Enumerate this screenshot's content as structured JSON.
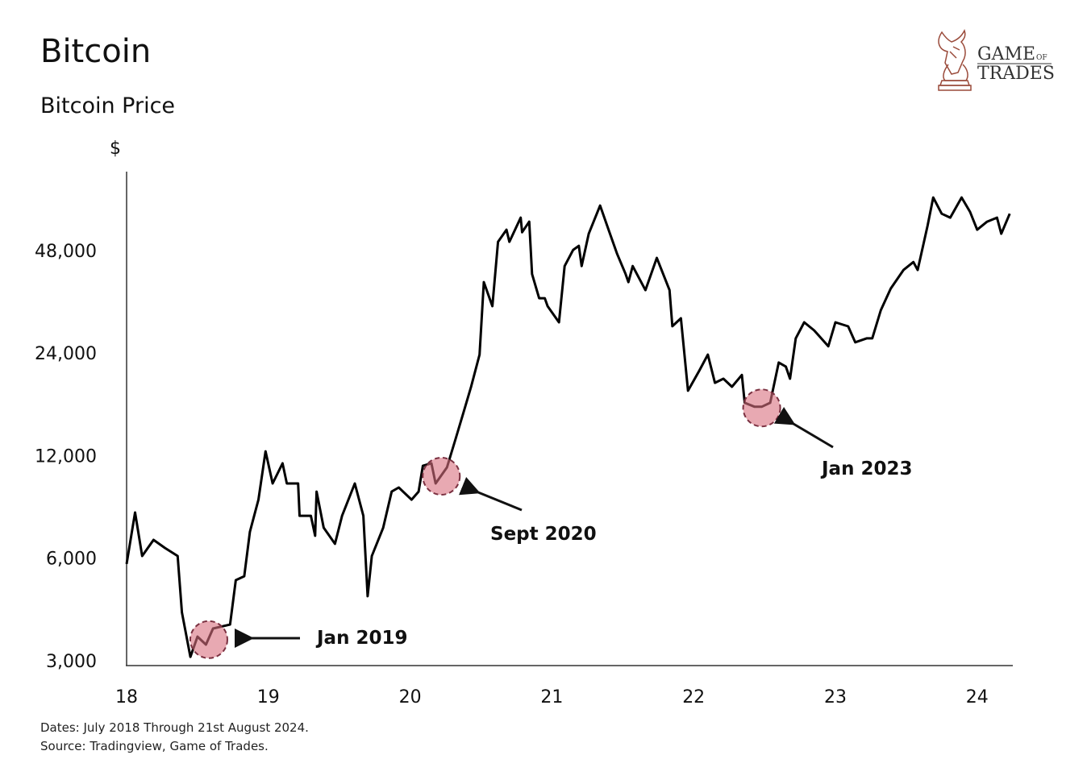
{
  "header": {
    "title": "Bitcoin",
    "subtitle": "Bitcoin Price"
  },
  "logo": {
    "line1": "GAME",
    "of": "OF",
    "line2": "TRADES",
    "color": "#8a3a2a"
  },
  "footer": {
    "dates": "Dates: July 2018 Through 21st August 2024.",
    "source": "Source: Tradingview, Game of Trades."
  },
  "chart_data": {
    "type": "line",
    "title": "Bitcoin",
    "subtitle": "Bitcoin Price",
    "ylabel": "$",
    "xlabel": "",
    "yscale": "log2",
    "ylim": [
      3000,
      80000
    ],
    "xlim": [
      18,
      24.25
    ],
    "grid": false,
    "line_color": "#000000",
    "x_ticks": [
      18,
      19,
      20,
      21,
      22,
      23,
      24
    ],
    "x_tick_labels": [
      "18",
      "19",
      "20",
      "21",
      "22",
      "23",
      "24"
    ],
    "y_ticks": [
      3000,
      6000,
      12000,
      24000,
      48000
    ],
    "y_tick_labels": [
      "3,000",
      "6,000",
      "12,000",
      "24,000",
      "48,000"
    ],
    "series": [
      {
        "x": [
          18.0,
          18.06,
          18.11,
          18.19,
          18.27,
          18.36,
          18.39,
          18.45,
          18.5,
          18.56,
          18.61,
          18.73,
          18.77,
          18.83,
          18.87,
          18.93,
          18.98,
          19.03,
          19.1,
          19.13,
          19.21,
          19.22,
          19.3,
          19.33,
          19.34,
          19.39,
          19.47,
          19.52,
          19.61,
          19.67,
          19.7,
          19.73,
          19.81,
          19.87,
          19.92,
          20.01,
          20.06,
          20.09,
          20.15,
          20.18,
          20.26,
          20.32,
          20.38,
          20.43,
          20.49,
          20.52,
          20.58,
          20.62,
          20.68,
          20.7,
          20.78,
          20.79,
          20.84,
          20.86,
          20.91,
          20.95,
          20.97,
          21.05,
          21.09,
          21.15,
          21.19,
          21.21,
          21.26,
          21.34,
          21.4,
          21.46,
          21.52,
          21.54,
          21.57,
          21.66,
          21.74,
          21.83,
          21.85,
          21.91,
          21.96,
          22.04,
          22.1,
          22.15,
          22.21,
          22.27,
          22.34,
          22.36,
          22.43,
          22.48,
          22.54,
          22.6,
          22.65,
          22.68,
          22.72,
          22.78,
          22.85,
          22.95,
          23.0,
          23.09,
          23.14,
          23.22,
          23.26,
          23.32,
          23.39,
          23.48,
          23.55,
          23.58,
          23.65,
          23.69,
          23.75,
          23.81,
          23.89,
          23.95,
          24.0,
          24.07,
          24.14,
          24.17,
          24.23
        ],
        "y": [
          5770,
          8170,
          6090,
          6790,
          6430,
          6090,
          4160,
          3080,
          3530,
          3345,
          3730,
          3830,
          5170,
          5310,
          7170,
          8910,
          12350,
          9940,
          11390,
          9940,
          9940,
          7990,
          7990,
          6980,
          9410,
          7370,
          6610,
          7990,
          9940,
          7990,
          4640,
          6090,
          7370,
          9410,
          9670,
          8910,
          9410,
          11200,
          11390,
          9940,
          11080,
          13410,
          16240,
          19100,
          23740,
          38750,
          32930,
          50890,
          55200,
          50890,
          59900,
          54300,
          58290,
          40930,
          34760,
          34760,
          32930,
          29530,
          43190,
          48190,
          49500,
          43190,
          53720,
          65000,
          55200,
          46900,
          40930,
          38750,
          43190,
          36700,
          45630,
          36700,
          28750,
          30350,
          18600,
          21300,
          23740,
          19620,
          20170,
          19100,
          20700,
          17140,
          16690,
          16690,
          17140,
          22510,
          21900,
          20170,
          26500,
          29530,
          27970,
          25120,
          29530,
          28740,
          25800,
          26500,
          26500,
          32040,
          37100,
          42050,
          44380,
          42050,
          56720,
          68640,
          61540,
          59900,
          68640,
          62270,
          55200,
          58290,
          59900,
          53720,
          61540
        ]
      }
    ],
    "annotations": [
      {
        "label": "Jan 2019",
        "x": 18.58,
        "y": 3460,
        "marker": "circle",
        "color": "#d9707f"
      },
      {
        "label": "Sept 2020",
        "x": 20.22,
        "y": 10440,
        "marker": "circle",
        "color": "#d9707f"
      },
      {
        "label": "Jan 2023",
        "x": 22.48,
        "y": 16560,
        "marker": "circle",
        "color": "#d9707f"
      }
    ]
  }
}
